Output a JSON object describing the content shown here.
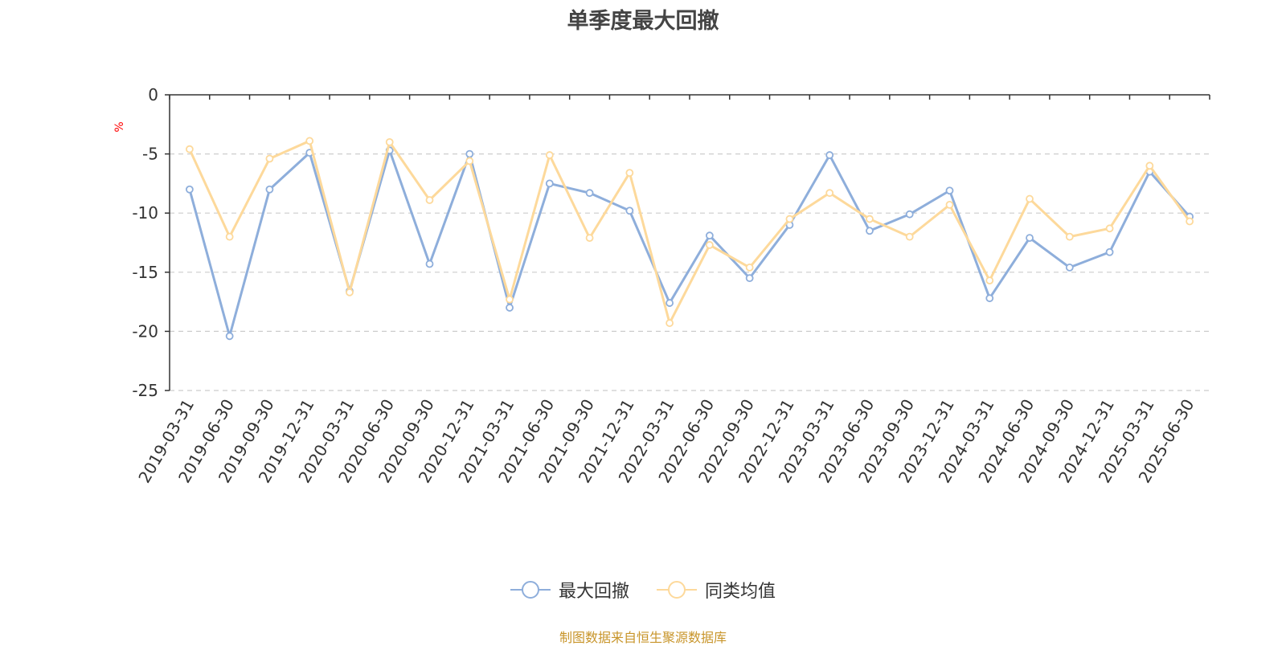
{
  "chart_data": {
    "type": "line",
    "title": "单季度最大回撤",
    "ylabel": "%",
    "ylim": [
      -25,
      0
    ],
    "yticks": [
      0,
      -5,
      -10,
      -15,
      -20,
      -25
    ],
    "grid": true,
    "legend_position": "bottom-center",
    "categories": [
      "2019-03-31",
      "2019-06-30",
      "2019-09-30",
      "2019-12-31",
      "2020-03-31",
      "2020-06-30",
      "2020-09-30",
      "2020-12-31",
      "2021-03-31",
      "2021-06-30",
      "2021-09-30",
      "2021-12-31",
      "2022-03-31",
      "2022-06-30",
      "2022-09-30",
      "2022-12-31",
      "2023-03-31",
      "2023-06-30",
      "2023-09-30",
      "2023-12-31",
      "2024-03-31",
      "2024-06-30",
      "2024-09-30",
      "2024-12-31",
      "2025-03-31",
      "2025-06-30"
    ],
    "series": [
      {
        "name": "最大回撤",
        "color": "#8eaedb",
        "values": [
          -8.0,
          -20.4,
          -8.0,
          -4.9,
          -16.6,
          -4.7,
          -14.3,
          -5.0,
          -18.0,
          -7.5,
          -8.3,
          -9.8,
          -17.6,
          -11.9,
          -15.5,
          -11.0,
          -5.1,
          -11.5,
          -10.1,
          -8.1,
          -17.2,
          -12.1,
          -14.6,
          -13.3,
          -6.5,
          -10.3
        ]
      },
      {
        "name": "同类均值",
        "color": "#fdd99b",
        "values": [
          -4.6,
          -12.0,
          -5.4,
          -3.9,
          -16.7,
          -4.0,
          -8.9,
          -5.6,
          -17.3,
          -5.1,
          -12.1,
          -6.6,
          -19.3,
          -12.7,
          -14.6,
          -10.5,
          -8.3,
          -10.5,
          -12.0,
          -9.3,
          -15.7,
          -8.8,
          -12.0,
          -11.3,
          -6.0,
          -10.7
        ]
      }
    ]
  },
  "source_note": "制图数据来自恒生聚源数据库"
}
